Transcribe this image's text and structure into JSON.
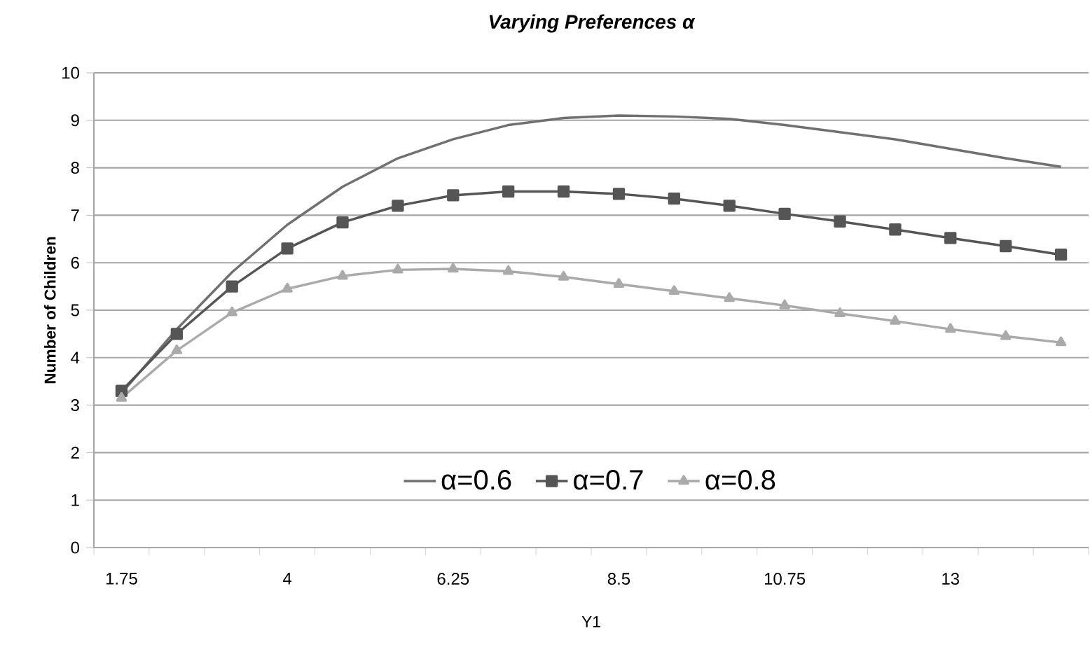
{
  "chart_data": {
    "type": "line",
    "title": "**Varying Preferences α**",
    "xlabel": "Y1",
    "ylabel": "**Number of Children**",
    "categories": [
      "1.75",
      null,
      null,
      "4",
      null,
      null,
      "6.25",
      null,
      null,
      "8.5",
      null,
      null,
      "10.75",
      null,
      null,
      "13",
      null,
      null
    ],
    "series": [
      {
        "name": "α=0.6",
        "color": "#707070",
        "marker": "none",
        "values": [
          3.25,
          4.6,
          5.8,
          6.8,
          7.6,
          8.2,
          8.6,
          8.9,
          9.05,
          9.1,
          9.08,
          9.03,
          8.9,
          8.75,
          8.6,
          8.4,
          8.2,
          8.02
        ]
      },
      {
        "name": "α=0.7",
        "color": "#555555",
        "marker": "square",
        "values": [
          3.3,
          4.5,
          5.5,
          6.3,
          6.85,
          7.2,
          7.42,
          7.5,
          7.5,
          7.45,
          7.35,
          7.2,
          7.03,
          6.87,
          6.7,
          6.52,
          6.35,
          6.17
        ]
      },
      {
        "name": "α=0.8",
        "color": "#aaaaaa",
        "marker": "triangle",
        "values": [
          3.15,
          4.15,
          4.95,
          5.45,
          5.72,
          5.85,
          5.87,
          5.82,
          5.7,
          5.55,
          5.4,
          5.25,
          5.1,
          4.93,
          4.77,
          4.6,
          4.45,
          4.32
        ]
      }
    ],
    "ylim": [
      0,
      10
    ],
    "yticks": [
      0,
      1,
      2,
      3,
      4,
      5,
      6,
      7,
      8,
      9,
      10
    ],
    "grid": "y",
    "legend": "bottom"
  }
}
